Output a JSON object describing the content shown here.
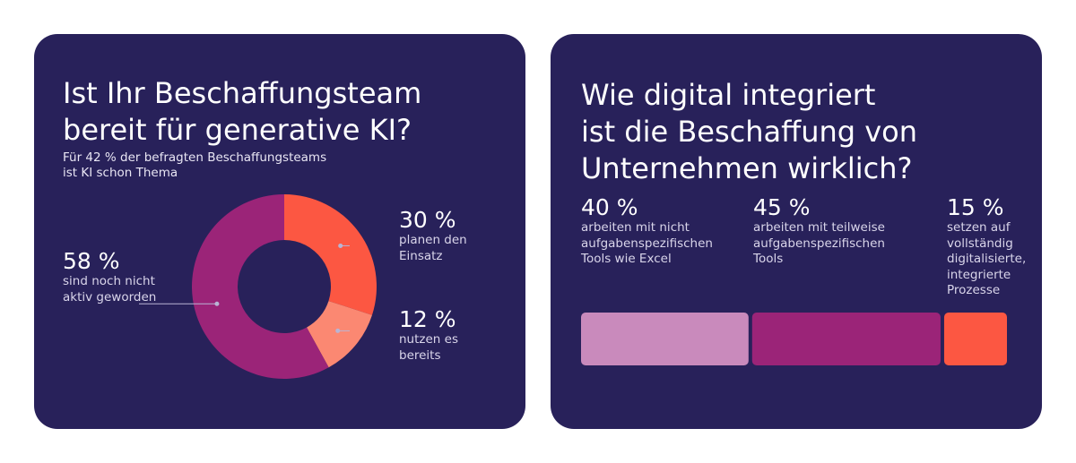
{
  "colors": {
    "background": "#28215a",
    "title": "#ffffff",
    "text": "#d9d5ea",
    "purple": "#9b2478",
    "coral": "#fc5742",
    "salmon": "#fb8872",
    "lilac": "#c98abc",
    "leader_line": "#b9b4d4"
  },
  "left": {
    "title_lines": [
      "Ist Ihr Beschaffungsteam",
      "bereit für generative KI?"
    ],
    "subtitle_lines": [
      "Für 42 % der befragten Beschaffungsteams",
      "ist KI schon Thema"
    ]
  },
  "right": {
    "title_lines": [
      "Wie digital integriert",
      "ist die Beschaffung von",
      "Unternehmen wirklich?"
    ]
  },
  "chart_data": [
    {
      "type": "pie",
      "title": "Ist Ihr Beschaffungsteam bereit für generative KI?",
      "slices": [
        {
          "pct_label": "30 %",
          "value": 30,
          "desc_lines": [
            "planen den",
            "Einsatz"
          ],
          "color": "#fc5742"
        },
        {
          "pct_label": "12 %",
          "value": 12,
          "desc_lines": [
            "nutzen es",
            "bereits"
          ],
          "color": "#fb8872"
        },
        {
          "pct_label": "58 %",
          "value": 58,
          "desc_lines": [
            "sind noch nicht",
            "aktiv geworden"
          ],
          "color": "#9b2478"
        }
      ]
    },
    {
      "type": "bar",
      "orientation": "stacked-horizontal",
      "title": "Wie digital integriert ist die Beschaffung von Unternehmen wirklich?",
      "segments": [
        {
          "pct_label": "40 %",
          "value": 40,
          "desc_lines": [
            "arbeiten mit nicht",
            "aufgabenspezifischen",
            "Tools wie Excel"
          ],
          "color": "#c98abc"
        },
        {
          "pct_label": "45 %",
          "value": 45,
          "desc_lines": [
            "arbeiten mit teilweise",
            "aufgabenspezifischen",
            "Tools"
          ],
          "color": "#9b2478"
        },
        {
          "pct_label": "15 %",
          "value": 15,
          "desc_lines": [
            "setzen auf",
            "vollständig",
            "digitalisierte,",
            "integrierte",
            "Prozesse"
          ],
          "color": "#fc5742"
        }
      ]
    }
  ]
}
